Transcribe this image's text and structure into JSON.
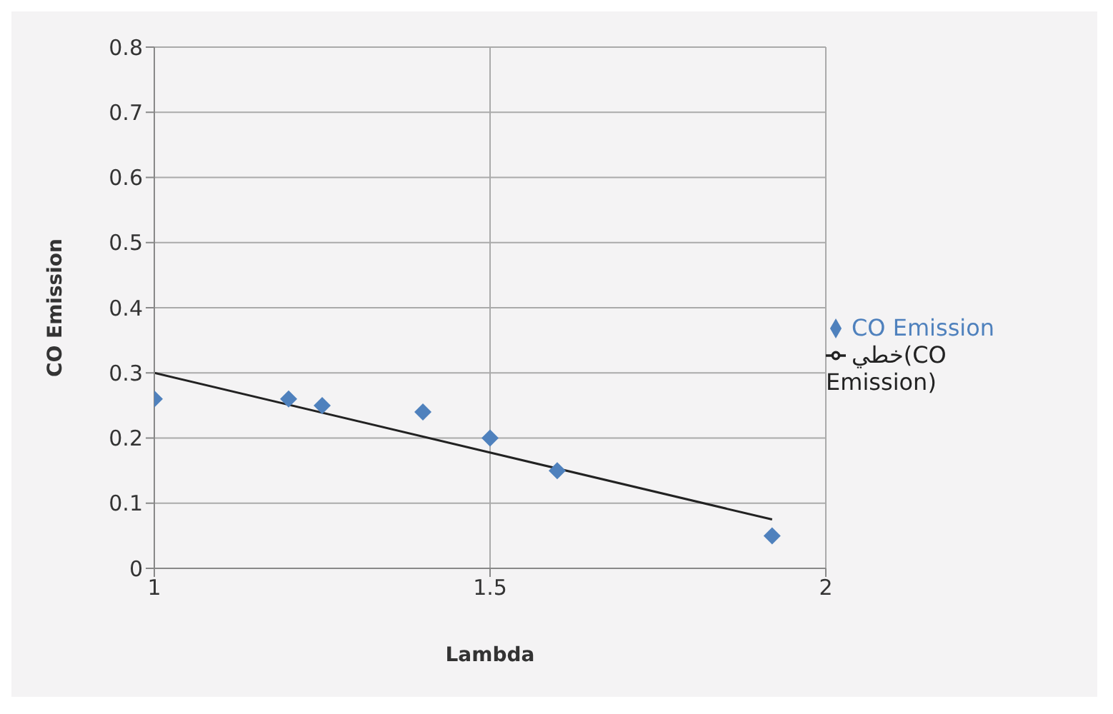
{
  "chart_data": {
    "type": "scatter",
    "xlabel": "Lambda",
    "ylabel": "CO Emission",
    "xlim": [
      1,
      2
    ],
    "xticks": [
      1,
      1.5,
      2
    ],
    "ylim": [
      0,
      0.8
    ],
    "yticks": [
      0,
      0.1,
      0.2,
      0.3,
      0.4,
      0.5,
      0.6,
      0.7,
      0.8
    ],
    "grid": true,
    "legend": "right",
    "marker": "diamond",
    "series": [
      {
        "name": "CO Emission",
        "color": "#4f81bd",
        "x": [
          1.0,
          1.2,
          1.25,
          1.4,
          1.5,
          1.6,
          1.92
        ],
        "values": [
          0.26,
          0.26,
          0.25,
          0.24,
          0.2,
          0.15,
          0.05
        ]
      },
      {
        "name": "خطي(CO Emission)",
        "type": "line",
        "color": "#222222",
        "marker": "none",
        "x": [
          1.0,
          1.92
        ],
        "values": [
          0.3,
          0.075
        ]
      }
    ]
  }
}
